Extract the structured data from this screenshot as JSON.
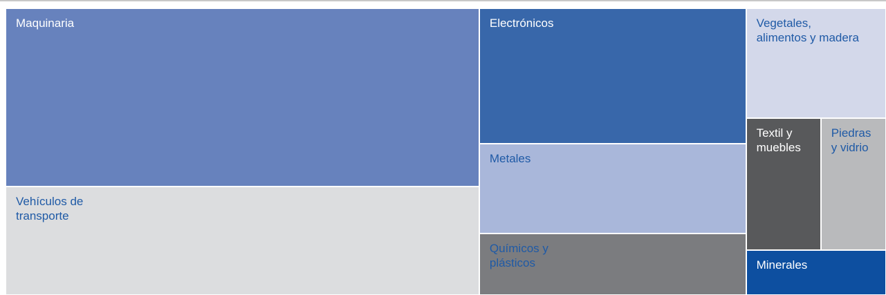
{
  "chart_data": {
    "type": "treemap",
    "groups": [
      {
        "name": "Maquinaria",
        "value": 33.4,
        "color": "#6782bd",
        "label_color": "#ffffff"
      },
      {
        "name": "Vehículos de transporte",
        "value": 20.4,
        "color": "#dcdddf",
        "label_color": "#1f5aa6"
      },
      {
        "name": "Electrónicos",
        "value": 14.3,
        "color": "#3867aa",
        "label_color": "#ffffff"
      },
      {
        "name": "Metales",
        "value": 9.5,
        "color": "#a9b7da",
        "label_color": "#1f5aa6"
      },
      {
        "name": "Químicos y plásticos",
        "value": 6.5,
        "color": "#7b7c7f",
        "label_color": "#1f5aa6"
      },
      {
        "name": "Vegetales, alimentos y madera",
        "value": 6.1,
        "color": "#d3d8ea",
        "label_color": "#1f5aa6"
      },
      {
        "name": "Textil y muebles",
        "value": 3.9,
        "color": "#58595b",
        "label_color": "#ffffff"
      },
      {
        "name": "Piedras y vidrio",
        "value": 3.4,
        "color": "#b9babc",
        "label_color": "#1f5aa6"
      },
      {
        "name": "Minerales",
        "value": 2.5,
        "color": "#0d4fa0",
        "label_color": "#ffffff"
      }
    ]
  }
}
